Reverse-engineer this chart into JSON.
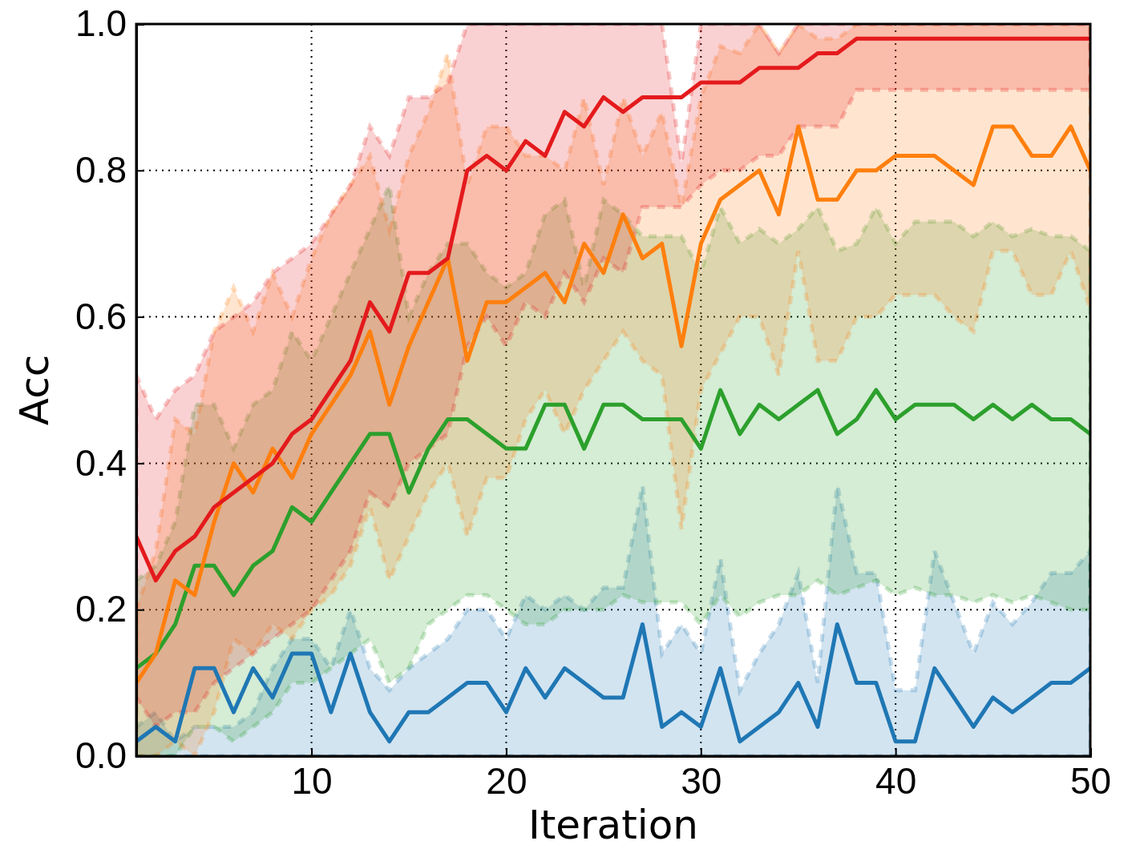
{
  "chart_data": {
    "type": "line",
    "xlabel": "Iteration",
    "ylabel": "Acc",
    "x": [
      1,
      2,
      3,
      4,
      5,
      6,
      7,
      8,
      9,
      10,
      11,
      12,
      13,
      14,
      15,
      16,
      17,
      18,
      19,
      20,
      21,
      22,
      23,
      24,
      25,
      26,
      27,
      28,
      29,
      30,
      31,
      32,
      33,
      34,
      35,
      36,
      37,
      38,
      39,
      40,
      41,
      42,
      43,
      44,
      45,
      46,
      47,
      48,
      49,
      50
    ],
    "xlim": [
      1,
      50
    ],
    "xticks": [
      10,
      20,
      30,
      40,
      50
    ],
    "ylim": [
      0,
      1
    ],
    "yticks": [
      {
        "value": 0,
        "label": "0.0"
      },
      0.2,
      0.4,
      0.6,
      0.8,
      {
        "value": 1,
        "label": "1.0"
      }
    ],
    "grid": true,
    "line_style": "solid",
    "series": [
      {
        "color": "#1f77b4",
        "values": [
          0.02,
          0.04,
          0.02,
          0.12,
          0.12,
          0.06,
          0.12,
          0.08,
          0.14,
          0.14,
          0.06,
          0.14,
          0.06,
          0.02,
          0.06,
          0.06,
          0.08,
          0.1,
          0.1,
          0.06,
          0.12,
          0.08,
          0.12,
          0.1,
          0.08,
          0.08,
          0.18,
          0.04,
          0.06,
          0.04,
          0.12,
          0.02,
          0.04,
          0.06,
          0.1,
          0.04,
          0.18,
          0.1,
          0.1,
          0.02,
          0.02,
          0.12,
          0.08,
          0.04,
          0.08,
          0.06,
          0.08,
          0.1,
          0.1,
          0.12
        ],
        "lower": [
          0,
          0,
          0,
          0,
          0,
          0,
          0,
          0,
          0,
          0,
          0,
          0,
          0,
          0,
          0,
          0,
          0,
          0,
          0,
          0,
          0,
          0,
          0,
          0,
          0,
          0,
          0,
          0,
          0,
          0,
          0,
          0,
          0,
          0,
          0,
          0,
          0,
          0,
          0,
          0,
          0,
          0,
          0,
          0,
          0,
          0,
          0,
          0,
          0,
          0
        ],
        "upper": [
          0.04,
          0.06,
          0.02,
          0.04,
          0.04,
          0.04,
          0.06,
          0.12,
          0.16,
          0.16,
          0.12,
          0.2,
          0.12,
          0.09,
          0.12,
          0.14,
          0.16,
          0.2,
          0.2,
          0.16,
          0.22,
          0.2,
          0.22,
          0.2,
          0.23,
          0.23,
          0.37,
          0.14,
          0.18,
          0.14,
          0.27,
          0.09,
          0.14,
          0.18,
          0.25,
          0.1,
          0.37,
          0.25,
          0.25,
          0.09,
          0.09,
          0.28,
          0.21,
          0.14,
          0.21,
          0.18,
          0.21,
          0.25,
          0.25,
          0.28
        ]
      },
      {
        "color": "#2ca02c",
        "values": [
          0.12,
          0.14,
          0.18,
          0.26,
          0.26,
          0.22,
          0.26,
          0.28,
          0.34,
          0.32,
          0.36,
          0.4,
          0.44,
          0.44,
          0.36,
          0.42,
          0.46,
          0.46,
          0.44,
          0.42,
          0.42,
          0.48,
          0.48,
          0.42,
          0.48,
          0.48,
          0.46,
          0.46,
          0.46,
          0.42,
          0.5,
          0.44,
          0.48,
          0.46,
          0.48,
          0.5,
          0.44,
          0.46,
          0.5,
          0.46,
          0.48,
          0.48,
          0.48,
          0.46,
          0.48,
          0.46,
          0.48,
          0.46,
          0.46,
          0.44
        ],
        "lower": [
          0,
          0,
          0,
          0.04,
          0.04,
          0.02,
          0.04,
          0.06,
          0.1,
          0.1,
          0.12,
          0.14,
          0.16,
          0.1,
          0.12,
          0.18,
          0.2,
          0.22,
          0.22,
          0.2,
          0.18,
          0.18,
          0.2,
          0.2,
          0.2,
          0.22,
          0.21,
          0.21,
          0.21,
          0.18,
          0.22,
          0.19,
          0.21,
          0.22,
          0.22,
          0.24,
          0.22,
          0.23,
          0.24,
          0.22,
          0.23,
          0.22,
          0.22,
          0.21,
          0.22,
          0.21,
          0.22,
          0.21,
          0.2,
          0.2
        ],
        "upper": [
          0.24,
          0.26,
          0.32,
          0.48,
          0.48,
          0.42,
          0.48,
          0.5,
          0.58,
          0.54,
          0.6,
          0.66,
          0.72,
          0.78,
          0.6,
          0.66,
          0.7,
          0.7,
          0.66,
          0.64,
          0.66,
          0.74,
          0.76,
          0.64,
          0.76,
          0.74,
          0.71,
          0.71,
          0.71,
          0.66,
          0.75,
          0.7,
          0.72,
          0.7,
          0.72,
          0.75,
          0.69,
          0.7,
          0.75,
          0.7,
          0.73,
          0.73,
          0.73,
          0.71,
          0.73,
          0.71,
          0.72,
          0.71,
          0.71,
          0.69
        ]
      },
      {
        "color": "#ff7f0e",
        "values": [
          0.1,
          0.14,
          0.24,
          0.22,
          0.32,
          0.4,
          0.36,
          0.42,
          0.38,
          0.44,
          0.48,
          0.52,
          0.58,
          0.48,
          0.56,
          0.62,
          0.68,
          0.54,
          0.62,
          0.62,
          0.64,
          0.66,
          0.62,
          0.7,
          0.66,
          0.74,
          0.68,
          0.7,
          0.56,
          0.7,
          0.76,
          0.78,
          0.8,
          0.74,
          0.86,
          0.76,
          0.76,
          0.8,
          0.8,
          0.82,
          0.82,
          0.82,
          0.8,
          0.78,
          0.86,
          0.86,
          0.82,
          0.82,
          0.86,
          0.8
        ],
        "lower": [
          0,
          0,
          0.02,
          0,
          0.06,
          0.16,
          0.14,
          0.18,
          0.16,
          0.2,
          0.22,
          0.26,
          0.34,
          0.24,
          0.3,
          0.36,
          0.4,
          0.3,
          0.38,
          0.38,
          0.46,
          0.5,
          0.44,
          0.5,
          0.54,
          0.58,
          0.54,
          0.52,
          0.31,
          0.5,
          0.55,
          0.6,
          0.6,
          0.52,
          0.69,
          0.54,
          0.54,
          0.6,
          0.6,
          0.63,
          0.63,
          0.63,
          0.6,
          0.58,
          0.69,
          0.69,
          0.63,
          0.63,
          0.69,
          0.61
        ],
        "upper": [
          0.2,
          0.28,
          0.46,
          0.44,
          0.58,
          0.64,
          0.58,
          0.66,
          0.6,
          0.68,
          0.74,
          0.78,
          0.82,
          0.72,
          0.82,
          0.88,
          0.96,
          0.78,
          0.86,
          0.86,
          0.82,
          0.82,
          0.8,
          0.9,
          0.78,
          0.9,
          0.82,
          0.88,
          0.75,
          0.9,
          0.97,
          0.96,
          1,
          0.96,
          1,
          0.98,
          0.98,
          1,
          1,
          1,
          1,
          1,
          1,
          1,
          1,
          1,
          1,
          1,
          1,
          1
        ]
      },
      {
        "color": "#e41a1c",
        "values": [
          0.3,
          0.24,
          0.28,
          0.3,
          0.34,
          0.36,
          0.38,
          0.4,
          0.44,
          0.46,
          0.5,
          0.54,
          0.62,
          0.58,
          0.66,
          0.66,
          0.68,
          0.8,
          0.82,
          0.8,
          0.84,
          0.82,
          0.88,
          0.86,
          0.9,
          0.88,
          0.9,
          0.9,
          0.9,
          0.92,
          0.92,
          0.92,
          0.94,
          0.94,
          0.94,
          0.96,
          0.96,
          0.98,
          0.98,
          0.98,
          0.98,
          0.98,
          0.98,
          0.98,
          0.98,
          0.98,
          0.98,
          0.98,
          0.98,
          0.98
        ],
        "lower": [
          0.08,
          0.04,
          0.06,
          0.06,
          0.1,
          0.12,
          0.14,
          0.16,
          0.18,
          0.2,
          0.24,
          0.28,
          0.36,
          0.34,
          0.4,
          0.42,
          0.44,
          0.56,
          0.6,
          0.56,
          0.62,
          0.6,
          0.66,
          0.62,
          0.68,
          0.66,
          0.75,
          0.75,
          0.75,
          0.78,
          0.8,
          0.8,
          0.82,
          0.82,
          0.86,
          0.86,
          0.86,
          0.91,
          0.91,
          0.91,
          0.91,
          0.91,
          0.91,
          0.91,
          0.91,
          0.91,
          0.91,
          0.91,
          0.91,
          0.91
        ],
        "upper": [
          0.52,
          0.46,
          0.5,
          0.52,
          0.58,
          0.6,
          0.62,
          0.66,
          0.68,
          0.7,
          0.74,
          0.78,
          0.86,
          0.82,
          0.9,
          0.9,
          0.92,
          1,
          1,
          1,
          1,
          1,
          1,
          1,
          1,
          1,
          1,
          1,
          0.81,
          1,
          1,
          1,
          1,
          0.96,
          1,
          1,
          1,
          1,
          1,
          1,
          1,
          1,
          1,
          1,
          1,
          1,
          1,
          1,
          1,
          1
        ]
      }
    ]
  }
}
